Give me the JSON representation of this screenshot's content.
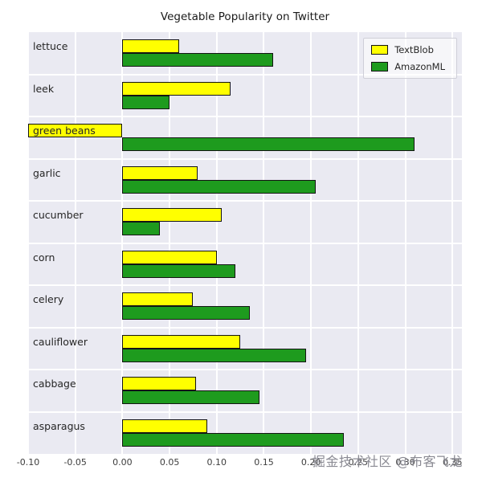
{
  "chart_data": {
    "type": "bar",
    "orientation": "horizontal",
    "title": "Vegetable Popularity on Twitter",
    "xlabel": "",
    "ylabel": "",
    "categories": [
      "lettuce",
      "leek",
      "green beans",
      "garlic",
      "cucumber",
      "corn",
      "celery",
      "cauliflower",
      "cabbage",
      "asparagus"
    ],
    "series": [
      {
        "name": "TextBlob",
        "color": "#ffff00",
        "values": [
          0.06,
          0.115,
          -0.1,
          0.08,
          0.105,
          0.1,
          0.075,
          0.125,
          0.078,
          0.09
        ]
      },
      {
        "name": "AmazonML",
        "color": "#1e9b1e",
        "values": [
          0.16,
          0.05,
          0.31,
          0.205,
          0.04,
          0.12,
          0.135,
          0.195,
          0.145,
          0.235
        ]
      }
    ],
    "xlim": [
      -0.1,
      0.36
    ],
    "xticks": [
      -0.1,
      -0.05,
      0.0,
      0.05,
      0.1,
      0.15,
      0.2,
      0.25,
      0.3,
      0.35
    ],
    "xtick_labels": [
      "-0.10",
      "-0.05",
      "0.00",
      "0.05",
      "0.10",
      "0.15",
      "0.20",
      "0.25",
      "0.30",
      "0.35"
    ],
    "grid": true,
    "legend_position": "upper right",
    "plot_background": "#eaeaf2",
    "gridline_color": "#ffffff",
    "bar_edge_color": "#141414"
  },
  "watermark": {
    "text": "掘金技术社区 @布客飞龙"
  }
}
